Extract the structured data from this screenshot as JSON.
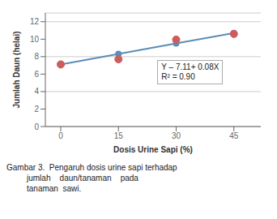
{
  "chart_data": {
    "type": "line",
    "x": [
      0,
      15,
      30,
      45
    ],
    "series": [
      {
        "type": "line",
        "color": "#5b8db8",
        "marker": "circle",
        "values": [
          7.11,
          8.31,
          9.51,
          10.71
        ]
      },
      {
        "type": "scatter",
        "color": "#cd5c5c",
        "marker": "circle",
        "values": [
          7.11,
          7.7,
          9.95,
          10.6
        ]
      }
    ],
    "xlabel": "Dosis Urine Sapi (%)",
    "ylabel": "Jumlah Daun (helai)",
    "annotations": [
      {
        "text": "Y – 7.11+ 0.08X\nR² = 0.90"
      }
    ],
    "caption": "Gambar 3.  Pengaruh dosis urine sapi terhadap\n         jumlah    daun/tanaman    pada\n         tanaman  sawi.",
    "xlim": [
      -4,
      52
    ],
    "xticks": [
      0,
      15,
      30,
      45
    ],
    "ylim": [
      0,
      13
    ],
    "yticks": [
      0,
      2,
      4,
      6,
      8,
      10,
      12
    ],
    "grid": "y"
  }
}
